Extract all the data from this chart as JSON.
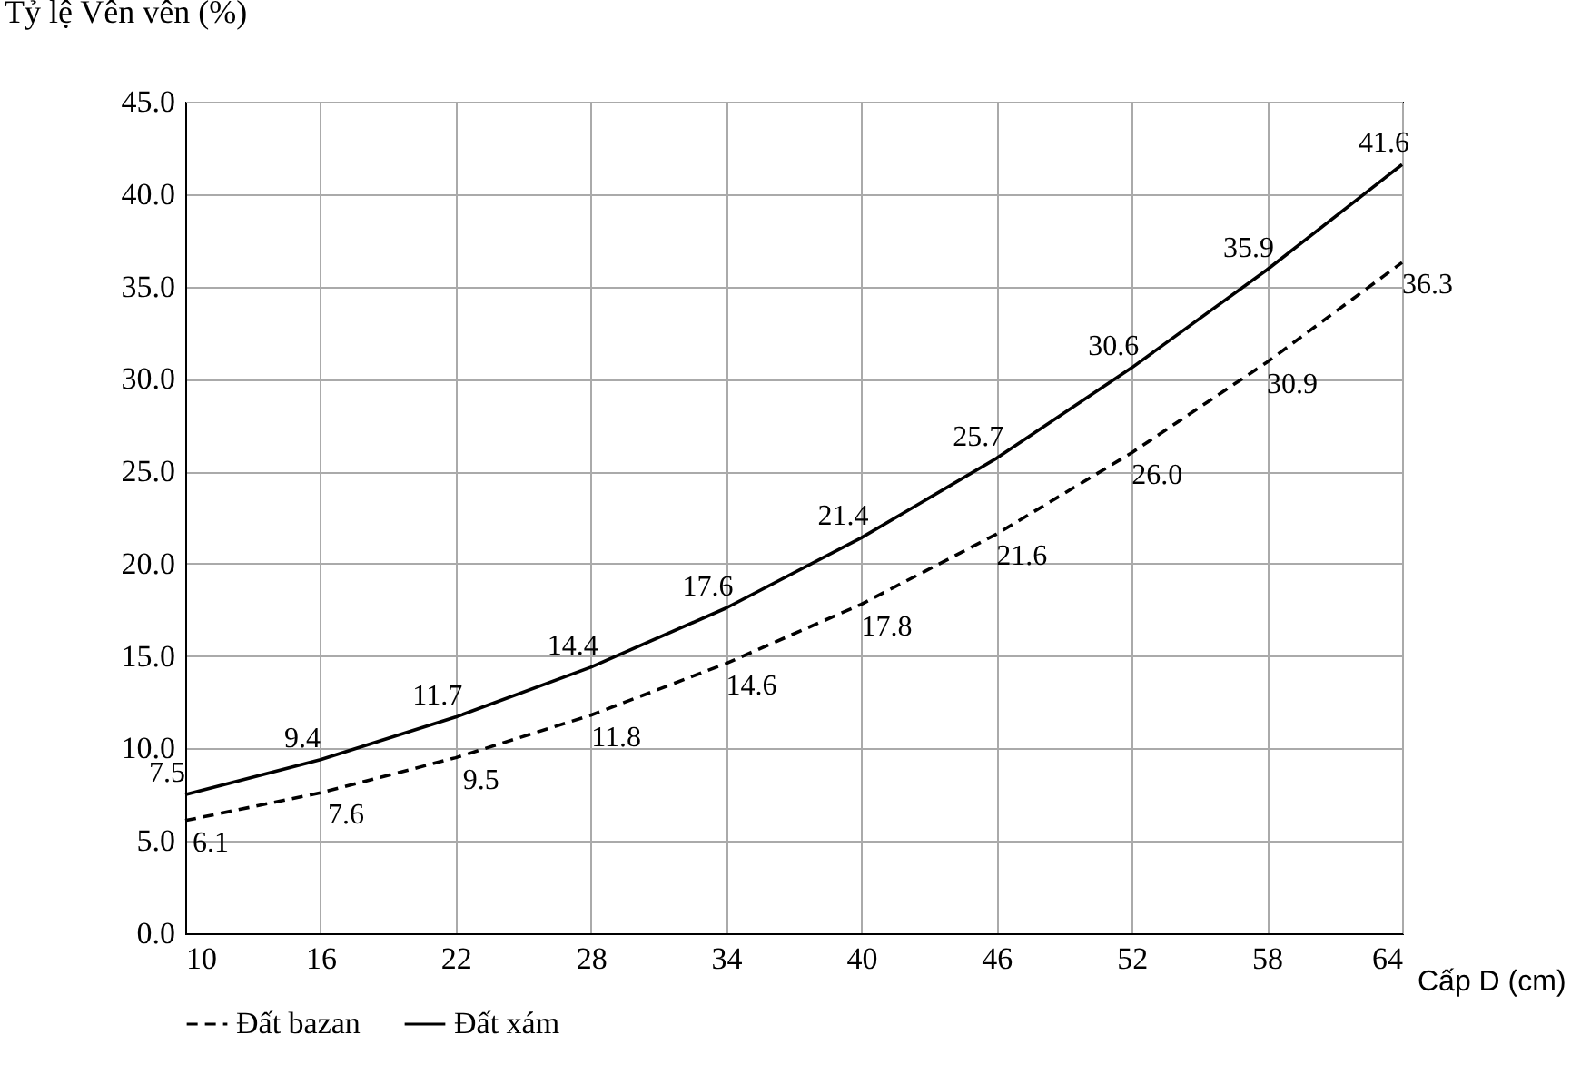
{
  "chart_data": {
    "type": "line",
    "ylabel": "Tỷ lệ Vên vên (%)",
    "xlabel": "Cấp D (cm)",
    "x": [
      10,
      16,
      22,
      28,
      34,
      40,
      46,
      52,
      58,
      64
    ],
    "series": [
      {
        "name": "Đất bazan",
        "color": "#000000",
        "line_style": "dashed",
        "values": [
          6.1,
          7.6,
          9.5,
          11.8,
          14.6,
          17.8,
          21.6,
          26.0,
          30.9,
          36.3
        ],
        "value_labels": [
          "6.1",
          "7.6",
          "9.5",
          "11.8",
          "14.6",
          "17.8",
          "21.6",
          "26.0",
          "30.9",
          "36.3"
        ]
      },
      {
        "name": "Đất xám",
        "color": "#000000",
        "line_style": "solid",
        "values": [
          7.5,
          9.4,
          11.7,
          14.4,
          17.6,
          21.4,
          25.7,
          30.6,
          35.9,
          41.6
        ],
        "value_labels": [
          "7.5",
          "9.4",
          "11.7",
          "14.4",
          "17.6",
          "21.4",
          "25.7",
          "30.6",
          "35.9",
          "41.6"
        ]
      }
    ],
    "xlim": [
      10,
      64
    ],
    "xticks": [
      10,
      16,
      22,
      28,
      34,
      40,
      46,
      52,
      58,
      64
    ],
    "ylim": [
      0,
      45
    ],
    "yticks": [
      {
        "value": 0,
        "label": "0.0"
      },
      {
        "value": 5,
        "label": "5.0"
      },
      {
        "value": 10,
        "label": "10.0"
      },
      {
        "value": 15,
        "label": "15.0"
      },
      {
        "value": 20,
        "label": "20.0"
      },
      {
        "value": 25,
        "label": "25.0"
      },
      {
        "value": 30,
        "label": "30.0"
      },
      {
        "value": 35,
        "label": "35.0"
      },
      {
        "value": 40,
        "label": "40.0"
      },
      {
        "value": 45,
        "label": "45.0"
      }
    ],
    "grid": true,
    "legend": "bottom"
  }
}
